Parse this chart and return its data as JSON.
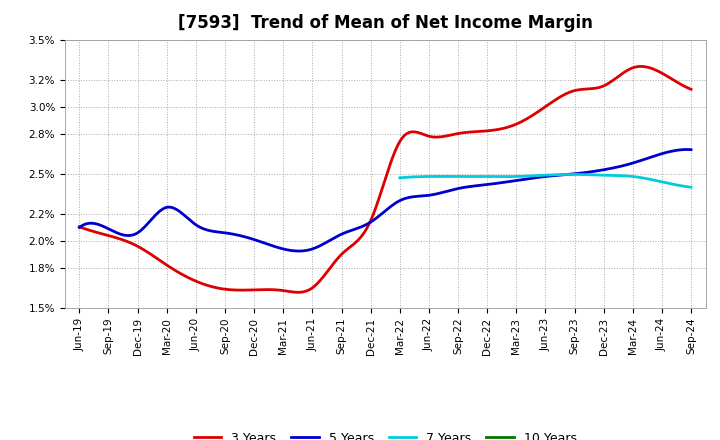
{
  "title": "[7593]  Trend of Mean of Net Income Margin",
  "ylim": [
    0.015,
    0.035
  ],
  "yticks": [
    0.015,
    0.018,
    0.02,
    0.022,
    0.025,
    0.028,
    0.03,
    0.032,
    0.035
  ],
  "ytick_labels": [
    "1.5%",
    "1.8%",
    "2.0%",
    "2.2%",
    "2.5%",
    "2.8%",
    "3.0%",
    "3.2%",
    "3.5%"
  ],
  "x_labels": [
    "Jun-19",
    "Sep-19",
    "Dec-19",
    "Mar-20",
    "Jun-20",
    "Sep-20",
    "Dec-20",
    "Mar-21",
    "Jun-21",
    "Sep-21",
    "Dec-21",
    "Mar-22",
    "Jun-22",
    "Sep-22",
    "Dec-22",
    "Mar-23",
    "Jun-23",
    "Sep-23",
    "Dec-23",
    "Mar-24",
    "Jun-24",
    "Sep-24"
  ],
  "color_3y": "#dd0000",
  "color_5y": "#0000cc",
  "color_7y": "#00ccdd",
  "color_10y": "#007700",
  "legend_labels": [
    "3 Years",
    "5 Years",
    "7 Years",
    "10 Years"
  ],
  "series_3y": [
    0.02105,
    0.0204,
    0.0196,
    0.0182,
    0.017,
    0.0164,
    0.01635,
    0.0163,
    0.0165,
    0.019,
    0.0215,
    0.0274,
    0.0278,
    0.028,
    0.0282,
    0.0287,
    0.03,
    0.0312,
    0.03155,
    0.0329,
    0.0325,
    0.0313
  ],
  "series_5y": [
    0.021,
    0.0209,
    0.0206,
    0.0225,
    0.0212,
    0.0206,
    0.0201,
    0.0194,
    0.0194,
    0.0205,
    0.0214,
    0.023,
    0.0234,
    0.0239,
    0.0242,
    0.0245,
    0.0248,
    0.025,
    0.0253,
    0.0258,
    0.0265,
    0.0268
  ],
  "series_7y": [
    null,
    null,
    null,
    null,
    null,
    null,
    null,
    null,
    null,
    null,
    null,
    0.0247,
    0.0248,
    0.0248,
    0.0248,
    0.0248,
    0.0249,
    0.02495,
    0.0249,
    0.0248,
    0.0244,
    0.024
  ],
  "series_10y": [
    null,
    null,
    null,
    null,
    null,
    null,
    null,
    null,
    null,
    null,
    null,
    null,
    null,
    null,
    null,
    null,
    null,
    null,
    null,
    null,
    null,
    null
  ],
  "background_color": "#ffffff",
  "grid_color": "#aaaaaa",
  "title_fontsize": 12,
  "tick_fontsize": 7.5,
  "legend_fontsize": 9,
  "linewidth": 2.0
}
